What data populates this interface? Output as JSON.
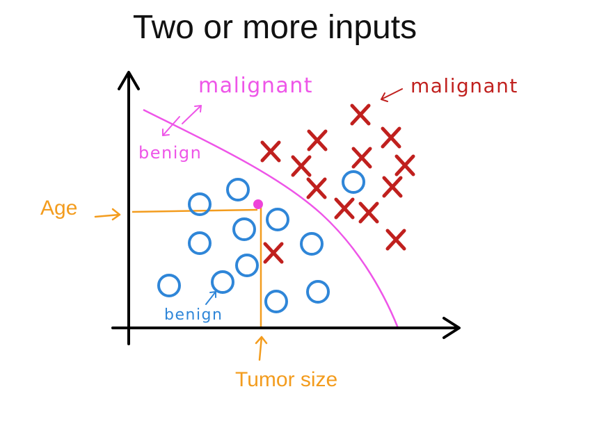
{
  "slide": {
    "title": "Two or more inputs"
  },
  "diagram": {
    "axis_labels": {
      "x": "Tumor size",
      "y": "Age"
    },
    "annotations": {
      "boundary_malignant": "malignant",
      "boundary_benign": "benign",
      "cross_cluster": "malignant",
      "circle_cluster": "benign"
    },
    "legend_classes": [
      {
        "class": "malignant",
        "marker": "x",
        "color": "#c0201e"
      },
      {
        "class": "benign",
        "marker": "o",
        "color": "#2f86d8"
      }
    ],
    "colors": {
      "axis": "#000000",
      "boundary": "#ee55e8",
      "guide": "#f39c1e",
      "malignant": "#c0201e",
      "benign": "#2f86d8",
      "query_point": "#ee44d8"
    }
  }
}
